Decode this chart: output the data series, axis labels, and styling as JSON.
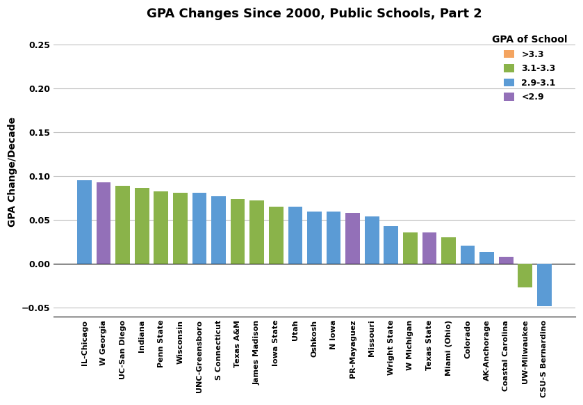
{
  "title": "GPA Changes Since 2000, Public Schools, Part 2",
  "ylabel": "GPA Change/Decade",
  "ylim": [
    -0.06,
    0.27
  ],
  "yticks": [
    -0.05,
    0,
    0.05,
    0.1,
    0.15,
    0.2,
    0.25
  ],
  "categories": [
    "IL-Chicago",
    "W Georgia",
    "UC-San Diego",
    "Indiana",
    "Penn State",
    "Wisconsin",
    "UNC-Greensboro",
    "S Connecticut",
    "Texas A&M",
    "James Madison",
    "Iowa State",
    "Utah",
    "Oshkosh",
    "N Iowa",
    "PR-Mayaguez",
    "Missouri",
    "Wright State",
    "W Michigan",
    "Texas State",
    "Miami (Ohio)",
    "Colorado",
    "AK-Anchorage",
    "Coastal Carolina",
    "UW-Milwaukee",
    "CSU-S Bernardino"
  ],
  "values": [
    0.095,
    0.093,
    0.089,
    0.087,
    0.083,
    0.081,
    0.081,
    0.077,
    0.074,
    0.072,
    0.065,
    0.065,
    0.06,
    0.06,
    0.058,
    0.054,
    0.043,
    0.036,
    0.036,
    0.03,
    0.021,
    0.014,
    0.008,
    -0.027,
    -0.048
  ],
  "colors": [
    "#5B9BD5",
    "#9370B8",
    "#8AB34A",
    "#8AB34A",
    "#8AB34A",
    "#8AB34A",
    "#5B9BD5",
    "#5B9BD5",
    "#8AB34A",
    "#8AB34A",
    "#8AB34A",
    "#5B9BD5",
    "#5B9BD5",
    "#5B9BD5",
    "#9370B8",
    "#5B9BD5",
    "#5B9BD5",
    "#8AB34A",
    "#9370B8",
    "#8AB34A",
    "#5B9BD5",
    "#5B9BD5",
    "#9370B8",
    "#8AB34A",
    "#5B9BD5"
  ],
  "legend_labels": [
    ">3.3",
    "3.1-3.3",
    "2.9-3.1",
    "<2.9"
  ],
  "legend_colors": [
    "#F4A460",
    "#8AB34A",
    "#5B9BD5",
    "#9370B8"
  ],
  "legend_title": "GPA of School",
  "background_color": "#FFFFFF",
  "grid_color": "#C0C0C0"
}
